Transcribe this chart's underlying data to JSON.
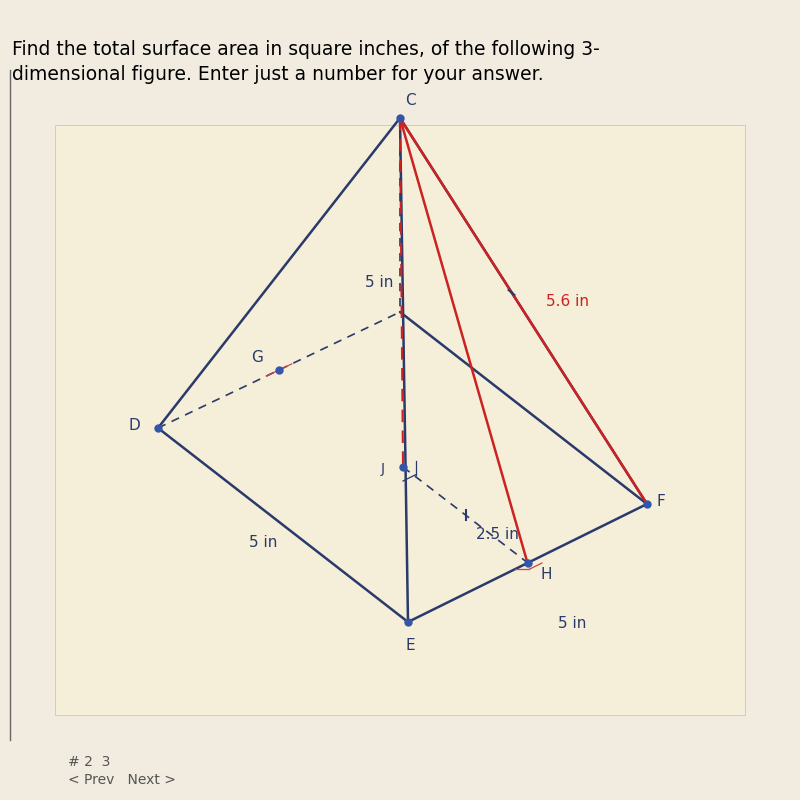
{
  "title_line1": "Find the total surface area in square inches, of the following 3-",
  "title_line2": "dimensional figure. Enter just a number for your answer.",
  "outer_bg": "#c8c8c8",
  "apex_label": "C",
  "base_labels": [
    "D",
    "E",
    "F"
  ],
  "midpoint_label": "G",
  "center_label": "J",
  "midpoint_right_label": "H",
  "slant_height_label": "5 in",
  "slant_edge_label": "5.6 in",
  "half_base_label": "2.5 in",
  "base_side_label1": "5 in",
  "base_side_label2": "5 in",
  "dark_blue": "#2a3a6a",
  "red_color": "#cc2222",
  "dot_color": "#3355aa",
  "footer_text": "# 2  3",
  "footer_text2": "< Prev   Next >"
}
